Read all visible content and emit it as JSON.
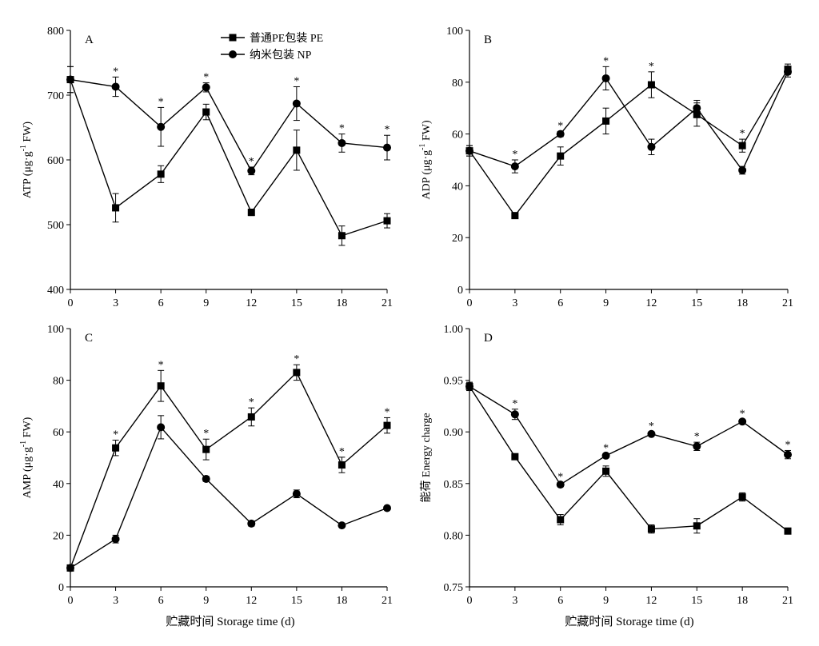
{
  "chart_data": [
    {
      "type": "line",
      "panel_label": "A",
      "ylabel": {
        "main": "ATP (μg·g",
        "sup": "-1",
        "tail": " FW)"
      },
      "xlabel": "",
      "x": [
        0,
        3,
        6,
        9,
        12,
        15,
        18,
        21
      ],
      "xticks": [
        "0",
        "3",
        "6",
        "9",
        "12",
        "15",
        "18",
        "21"
      ],
      "ylim": [
        400,
        800
      ],
      "yticks": [
        "400",
        "500",
        "600",
        "700",
        "800"
      ],
      "yticks_values": [
        400,
        500,
        600,
        700,
        800
      ],
      "legend": true,
      "series": [
        {
          "name": "普通PE包装 PE",
          "marker": "square",
          "values": [
            724,
            526,
            578,
            674,
            519,
            615,
            483,
            506
          ],
          "errors": [
            20,
            22,
            13,
            12,
            5,
            31,
            15,
            11
          ]
        },
        {
          "name": "纳米包装 NP",
          "marker": "circle",
          "values": [
            724,
            713,
            651,
            712,
            583,
            687,
            626,
            619
          ],
          "errors": [
            20,
            15,
            30,
            7,
            6,
            26,
            14,
            19
          ]
        }
      ],
      "significance": [
        "",
        "*",
        "*",
        "*",
        "*",
        "*",
        "*",
        "*"
      ]
    },
    {
      "type": "line",
      "panel_label": "B",
      "ylabel": {
        "main": "ADP (μg·g",
        "sup": "-1",
        "tail": " FW)"
      },
      "xlabel": "",
      "x": [
        0,
        3,
        6,
        9,
        12,
        15,
        18,
        21
      ],
      "xticks": [
        "0",
        "3",
        "6",
        "9",
        "12",
        "15",
        "18",
        "21"
      ],
      "ylim": [
        0,
        100
      ],
      "yticks": [
        "0",
        "20",
        "40",
        "60",
        "80",
        "100"
      ],
      "yticks_values": [
        0,
        20,
        40,
        60,
        80,
        100
      ],
      "legend": false,
      "series": [
        {
          "name": "普通PE包装 PE",
          "marker": "square",
          "values": [
            53.5,
            28.5,
            51.5,
            65,
            79,
            67.5,
            55.5,
            85
          ],
          "errors": [
            2,
            1,
            3.5,
            5,
            5,
            4.5,
            2.5,
            2
          ]
        },
        {
          "name": "纳米包装 NP",
          "marker": "circle",
          "values": [
            53.5,
            47.5,
            60,
            81.5,
            55,
            70,
            46,
            84
          ],
          "errors": [
            2,
            2.5,
            1,
            4.5,
            3,
            3,
            1.5,
            2
          ]
        }
      ],
      "significance": [
        "",
        "*",
        "*",
        "*",
        "*",
        "",
        "*",
        ""
      ]
    },
    {
      "type": "line",
      "panel_label": "C",
      "ylabel": {
        "main": "AMP (μg·g",
        "sup": "-1",
        "tail": " FW)"
      },
      "xlabel": "贮藏时间 Storage time (d)",
      "x": [
        0,
        3,
        6,
        9,
        12,
        15,
        18,
        21
      ],
      "xticks": [
        "0",
        "3",
        "6",
        "9",
        "12",
        "15",
        "18",
        "21"
      ],
      "ylim": [
        0,
        100
      ],
      "yticks": [
        "0",
        "20",
        "40",
        "60",
        "80",
        "100"
      ],
      "yticks_values": [
        0,
        20,
        40,
        60,
        80,
        100
      ],
      "legend": false,
      "series": [
        {
          "name": "普通PE包装 PE",
          "marker": "square",
          "values": [
            7.3,
            53.8,
            77.8,
            53.2,
            65.8,
            83,
            47.2,
            62.5
          ],
          "errors": [
            1,
            3,
            6,
            4,
            3.5,
            3,
            3,
            3
          ]
        },
        {
          "name": "纳米包装 NP",
          "marker": "circle",
          "values": [
            7.3,
            18.5,
            61.8,
            41.8,
            24.5,
            36,
            23.8,
            30.5
          ],
          "errors": [
            1,
            1.5,
            4.5,
            1,
            1,
            1.5,
            0.5,
            0.5
          ]
        }
      ],
      "significance": [
        "",
        "*",
        "*",
        "*",
        "*",
        "*",
        "*",
        "*"
      ]
    },
    {
      "type": "line",
      "panel_label": "D",
      "ylabel": {
        "main": "能荷 Energy charge",
        "sup": "",
        "tail": ""
      },
      "xlabel": "贮藏时间 Storage time (d)",
      "x": [
        0,
        3,
        6,
        9,
        12,
        15,
        18,
        21
      ],
      "xticks": [
        "0",
        "3",
        "6",
        "9",
        "12",
        "15",
        "18",
        "21"
      ],
      "ylim": [
        0.75,
        1.0
      ],
      "yticks": [
        "0.75",
        "0.80",
        "0.85",
        "0.90",
        "0.95",
        "1.00"
      ],
      "yticks_values": [
        0.75,
        0.8,
        0.85,
        0.9,
        0.95,
        1.0
      ],
      "legend": false,
      "series": [
        {
          "name": "普通PE包装 PE",
          "marker": "square",
          "values": [
            0.944,
            0.876,
            0.815,
            0.862,
            0.806,
            0.809,
            0.837,
            0.804
          ],
          "errors": [
            0.004,
            0.002,
            0.005,
            0.005,
            0.004,
            0.007,
            0.004,
            0.002
          ]
        },
        {
          "name": "纳米包装 NP",
          "marker": "circle",
          "values": [
            0.944,
            0.917,
            0.849,
            0.877,
            0.898,
            0.886,
            0.91,
            0.878
          ],
          "errors": [
            0.004,
            0.005,
            0.002,
            0.002,
            0.002,
            0.004,
            0.002,
            0.004
          ]
        }
      ],
      "significance": [
        "",
        "*",
        "*",
        "*",
        "*",
        "*",
        "*",
        "*"
      ]
    }
  ]
}
